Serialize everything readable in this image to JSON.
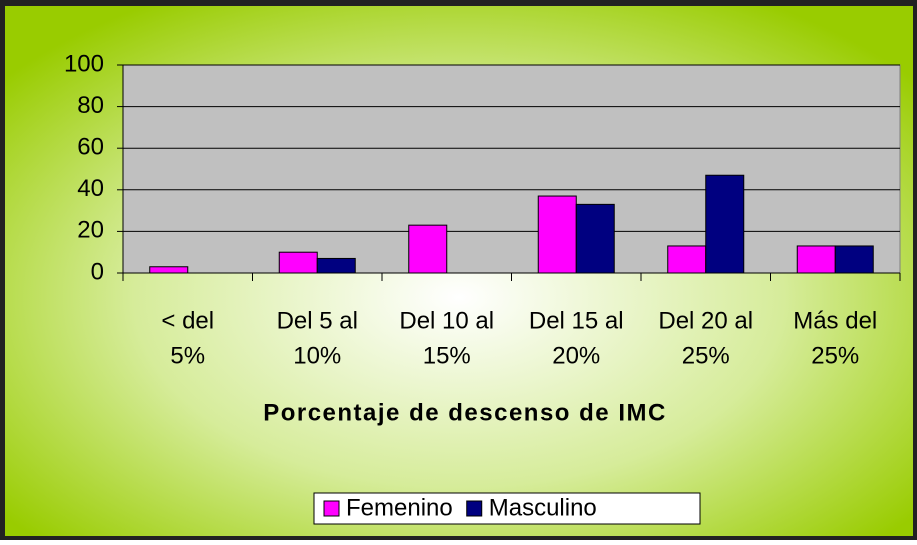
{
  "chart_data": {
    "type": "bar",
    "x_label": "Porcentaje de descenso de IMC",
    "categories": [
      [
        "< del",
        "5%"
      ],
      [
        "Del 5 al",
        "10%"
      ],
      [
        "Del 10 al",
        "15%"
      ],
      [
        "Del 15 al",
        "20%"
      ],
      [
        "Del 20 al",
        "25%"
      ],
      [
        "Más del",
        "25%"
      ]
    ],
    "series": [
      {
        "name": "Femenino",
        "color": "#ff00ff",
        "values": [
          3,
          10,
          23,
          37,
          13,
          13
        ]
      },
      {
        "name": "Masculino",
        "color": "#000080",
        "values": [
          0,
          7,
          0,
          33,
          47,
          13
        ]
      }
    ],
    "ylim": [
      0,
      100
    ],
    "yticks": [
      0,
      20,
      40,
      60,
      80,
      100
    ],
    "grid": true,
    "legend": "bottom"
  }
}
